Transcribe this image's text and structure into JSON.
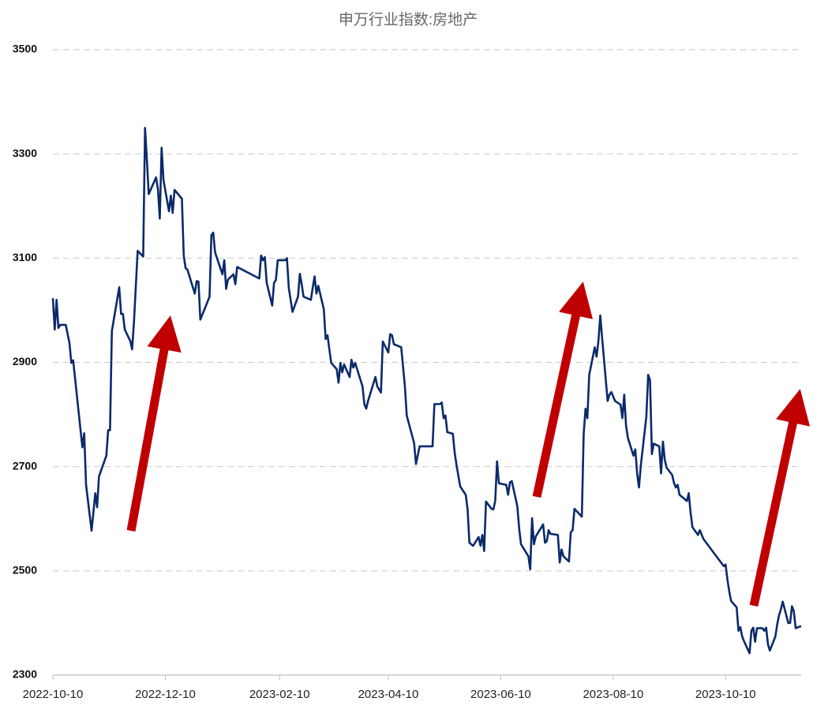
{
  "chart_data": {
    "type": "line",
    "title": "申万行业指数:房地产",
    "x": [
      "2022-10-10",
      "2022-10-11",
      "2022-10-12",
      "2022-10-13",
      "2022-10-14",
      "2022-10-17",
      "2022-10-19",
      "2022-10-20",
      "2022-10-21",
      "2022-10-26",
      "2022-10-27",
      "2022-10-28",
      "2022-10-31",
      "2022-11-02",
      "2022-11-03",
      "2022-11-04",
      "2022-11-08",
      "2022-11-09",
      "2022-11-10",
      "2022-11-11",
      "2022-11-15",
      "2022-11-16",
      "2022-11-17",
      "2022-11-18",
      "2022-11-21",
      "2022-11-22",
      "2022-11-23",
      "2022-11-25",
      "2022-11-28",
      "2022-11-29",
      "2022-11-30",
      "2022-12-01",
      "2022-12-05",
      "2022-12-06",
      "2022-12-07",
      "2022-12-08",
      "2022-12-09",
      "2022-12-12",
      "2022-12-13",
      "2022-12-14",
      "2022-12-15",
      "2022-12-19",
      "2022-12-20",
      "2022-12-21",
      "2022-12-22",
      "2022-12-26",
      "2022-12-27",
      "2022-12-28",
      "2022-12-29",
      "2023-01-03",
      "2023-01-04",
      "2023-01-05",
      "2023-01-06",
      "2023-01-10",
      "2023-01-11",
      "2023-01-12",
      "2023-01-13",
      "2023-01-16",
      "2023-01-17",
      "2023-01-18",
      "2023-01-30",
      "2023-01-31",
      "2023-02-01",
      "2023-02-02",
      "2023-02-03",
      "2023-02-06",
      "2023-02-07",
      "2023-02-08",
      "2023-02-09",
      "2023-02-13",
      "2023-02-14",
      "2023-02-15",
      "2023-02-17",
      "2023-02-20",
      "2023-02-21",
      "2023-02-22",
      "2023-02-23",
      "2023-02-27",
      "2023-02-28",
      "2023-03-01",
      "2023-03-02",
      "2023-03-03",
      "2023-03-06",
      "2023-03-07",
      "2023-03-08",
      "2023-03-10",
      "2023-03-13",
      "2023-03-14",
      "2023-03-15",
      "2023-03-16",
      "2023-03-17",
      "2023-03-20",
      "2023-03-21",
      "2023-03-22",
      "2023-03-23",
      "2023-03-27",
      "2023-03-28",
      "2023-03-29",
      "2023-03-30",
      "2023-04-03",
      "2023-04-04",
      "2023-04-06",
      "2023-04-07",
      "2023-04-10",
      "2023-04-11",
      "2023-04-12",
      "2023-04-13",
      "2023-04-17",
      "2023-04-19",
      "2023-04-20",
      "2023-04-24",
      "2023-04-25",
      "2023-04-27",
      "2023-05-04",
      "2023-05-05",
      "2023-05-08",
      "2023-05-09",
      "2023-05-10",
      "2023-05-11",
      "2023-05-12",
      "2023-05-15",
      "2023-05-16",
      "2023-05-17",
      "2023-05-19",
      "2023-05-22",
      "2023-05-23",
      "2023-05-24",
      "2023-05-26",
      "2023-05-29",
      "2023-05-30",
      "2023-05-31",
      "2023-06-01",
      "2023-06-02",
      "2023-06-05",
      "2023-06-06",
      "2023-06-07",
      "2023-06-08",
      "2023-06-09",
      "2023-06-13",
      "2023-06-14",
      "2023-06-15",
      "2023-06-16",
      "2023-06-19",
      "2023-06-20",
      "2023-06-21",
      "2023-06-25",
      "2023-06-26",
      "2023-06-27",
      "2023-06-28",
      "2023-06-29",
      "2023-07-03",
      "2023-07-04",
      "2023-07-05",
      "2023-07-06",
      "2023-07-07",
      "2023-07-11",
      "2023-07-12",
      "2023-07-13",
      "2023-07-14",
      "2023-07-17",
      "2023-07-18",
      "2023-07-19",
      "2023-07-20",
      "2023-07-24",
      "2023-07-25",
      "2023-07-26",
      "2023-07-27",
      "2023-07-28",
      "2023-07-31",
      "2023-08-01",
      "2023-08-02",
      "2023-08-03",
      "2023-08-04",
      "2023-08-07",
      "2023-08-08",
      "2023-08-09",
      "2023-08-11",
      "2023-08-14",
      "2023-08-15",
      "2023-08-16",
      "2023-08-17",
      "2023-08-18",
      "2023-08-21",
      "2023-08-22",
      "2023-08-23",
      "2023-08-24",
      "2023-08-25",
      "2023-08-28",
      "2023-08-29",
      "2023-08-30",
      "2023-08-31",
      "2023-09-01",
      "2023-09-04",
      "2023-09-05",
      "2023-09-06",
      "2023-09-07",
      "2023-09-08",
      "2023-09-11",
      "2023-09-12",
      "2023-09-13",
      "2023-09-14",
      "2023-09-15",
      "2023-09-18",
      "2023-09-19",
      "2023-09-20",
      "2023-09-21",
      "2023-09-22",
      "2023-09-25",
      "2023-09-26",
      "2023-09-28",
      "2023-10-09",
      "2023-10-10",
      "2023-10-11",
      "2023-10-12",
      "2023-10-13",
      "2023-10-16",
      "2023-10-17",
      "2023-10-18",
      "2023-10-19",
      "2023-10-20",
      "2023-10-23",
      "2023-10-24",
      "2023-10-25",
      "2023-10-26",
      "2023-10-27",
      "2023-10-30",
      "2023-10-31",
      "2023-11-01",
      "2023-11-02",
      "2023-11-03",
      "2023-11-06",
      "2023-11-07",
      "2023-11-08",
      "2023-11-09",
      "2023-11-10",
      "2023-11-13",
      "2023-11-14",
      "2023-11-15",
      "2023-11-16",
      "2023-11-17",
      "2023-11-20"
    ],
    "values": [
      3023,
      2963,
      3020,
      2966,
      2972,
      2972,
      2937,
      2899,
      2904,
      2737,
      2764,
      2665,
      2577,
      2649,
      2622,
      2681,
      2721,
      2770,
      2770,
      2960,
      3044,
      2993,
      2993,
      2963,
      2941,
      2925,
      2978,
      3114,
      3103,
      3350,
      3289,
      3223,
      3255,
      3232,
      3176,
      3312,
      3250,
      3190,
      3220,
      3187,
      3231,
      3214,
      3105,
      3081,
      3078,
      3032,
      3056,
      3055,
      2982,
      3026,
      3144,
      3149,
      3111,
      3069,
      3096,
      3041,
      3059,
      3069,
      3050,
      3083,
      3061,
      3105,
      3096,
      3102,
      3053,
      3009,
      3053,
      3058,
      3096,
      3096,
      3100,
      3043,
      2997,
      3026,
      3070,
      3050,
      3026,
      3020,
      3044,
      3065,
      3032,
      3047,
      3002,
      2945,
      2952,
      2899,
      2887,
      2861,
      2899,
      2881,
      2896,
      2872,
      2905,
      2890,
      2899,
      2854,
      2820,
      2811,
      2826,
      2872,
      2854,
      2842,
      2940,
      2919,
      2954,
      2952,
      2935,
      2929,
      2854,
      2798,
      2745,
      2705,
      2739,
      2739,
      2820,
      2820,
      2823,
      2793,
      2798,
      2766,
      2763,
      2727,
      2703,
      2662,
      2646,
      2619,
      2554,
      2548,
      2565,
      2548,
      2569,
      2538,
      2633,
      2619,
      2618,
      2634,
      2710,
      2668,
      2665,
      2646,
      2670,
      2672,
      2624,
      2581,
      2551,
      2528,
      2503,
      2601,
      2551,
      2566,
      2589,
      2554,
      2557,
      2578,
      2571,
      2569,
      2516,
      2541,
      2528,
      2518,
      2574,
      2578,
      2619,
      2604,
      2763,
      2811,
      2793,
      2876,
      2929,
      2911,
      2941,
      2990,
      2947,
      2826,
      2838,
      2843,
      2826,
      2819,
      2793,
      2838,
      2778,
      2755,
      2721,
      2733,
      2687,
      2660,
      2702,
      2796,
      2876,
      2866,
      2724,
      2744,
      2739,
      2687,
      2748,
      2713,
      2698,
      2684,
      2669,
      2660,
      2665,
      2646,
      2637,
      2634,
      2649,
      2612,
      2584,
      2569,
      2578,
      2561,
      2509,
      2512,
      2483,
      2460,
      2442,
      2430,
      2385,
      2392,
      2374,
      2365,
      2342,
      2385,
      2391,
      2364,
      2390,
      2390,
      2385,
      2391,
      2359,
      2347,
      2374,
      2397,
      2415,
      2426,
      2441,
      2400,
      2400,
      2432,
      2423,
      2390,
      2394
    ],
    "color": "#0b2a6a",
    "xlim": [
      "2022-10-10",
      "2023-11-20"
    ],
    "xticks": [
      "2022-10-10",
      "2022-12-10",
      "2023-02-10",
      "2023-04-10",
      "2023-06-10",
      "2023-08-10",
      "2023-10-10"
    ],
    "ylim": [
      2300,
      3500
    ],
    "yticks": [
      2300,
      2500,
      2700,
      2900,
      3100,
      3300,
      3500
    ],
    "grid": true
  }
}
